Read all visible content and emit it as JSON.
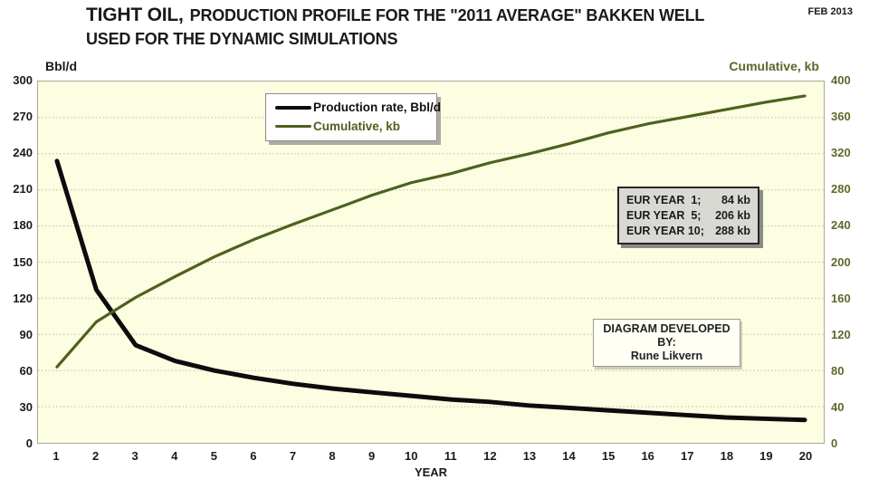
{
  "header": {
    "title_emphasis": "TIGHT OIL,",
    "title_rest": "PRODUCTION PROFILE FOR THE \"2011 AVERAGE\" BAKKEN WELL",
    "title_line2": "USED FOR THE DYNAMIC SIMULATIONS",
    "date_label": "FEB 2013"
  },
  "chart_data": {
    "type": "line",
    "x": [
      1,
      2,
      3,
      4,
      5,
      6,
      7,
      8,
      9,
      10,
      11,
      12,
      13,
      14,
      15,
      16,
      17,
      18,
      19,
      20
    ],
    "xlabel": "YEAR",
    "left_axis": {
      "label": "Bbl/d",
      "min": 0,
      "max": 300,
      "step": 30
    },
    "right_axis": {
      "label": "Cumulative, kb",
      "min": 0,
      "max": 400,
      "step": 40
    },
    "series": [
      {
        "name": "Production rate, Bbl/d",
        "axis": "left",
        "color": "#0c0c0c",
        "width": 5,
        "values": [
          234,
          127,
          81,
          68,
          60,
          54,
          49,
          45,
          42,
          39,
          36,
          34,
          31,
          29,
          27,
          25,
          23,
          21,
          20,
          19
        ]
      },
      {
        "name": "Cumulative, kb",
        "axis": "right",
        "color": "#4d611e",
        "width": 3.2,
        "values": [
          84,
          134,
          161,
          184,
          206,
          225,
          242,
          258,
          274,
          288,
          298,
          310,
          320,
          331,
          343,
          353,
          361,
          369,
          377,
          384
        ]
      }
    ],
    "grid": "horizontal-dotted",
    "plot_bg": "#fdfde2",
    "legend_position": "top-center"
  },
  "legend": {
    "items": [
      {
        "label": "Production rate, Bbl/d",
        "color": "#0c0c0c",
        "text_color": "#111111"
      },
      {
        "label": "Cumulative, kb",
        "color": "#4d611e",
        "text_color": "#4d611e"
      }
    ]
  },
  "eur_box": {
    "rows": [
      {
        "label": "EUR YEAR  1;",
        "value": "84 kb"
      },
      {
        "label": "EUR YEAR  5;",
        "value": "206 kb"
      },
      {
        "label": "EUR YEAR 10;",
        "value": "288 kb"
      }
    ]
  },
  "credit_box": {
    "line1": "DIAGRAM DEVELOPED BY:",
    "line2": "Rune Likvern"
  }
}
